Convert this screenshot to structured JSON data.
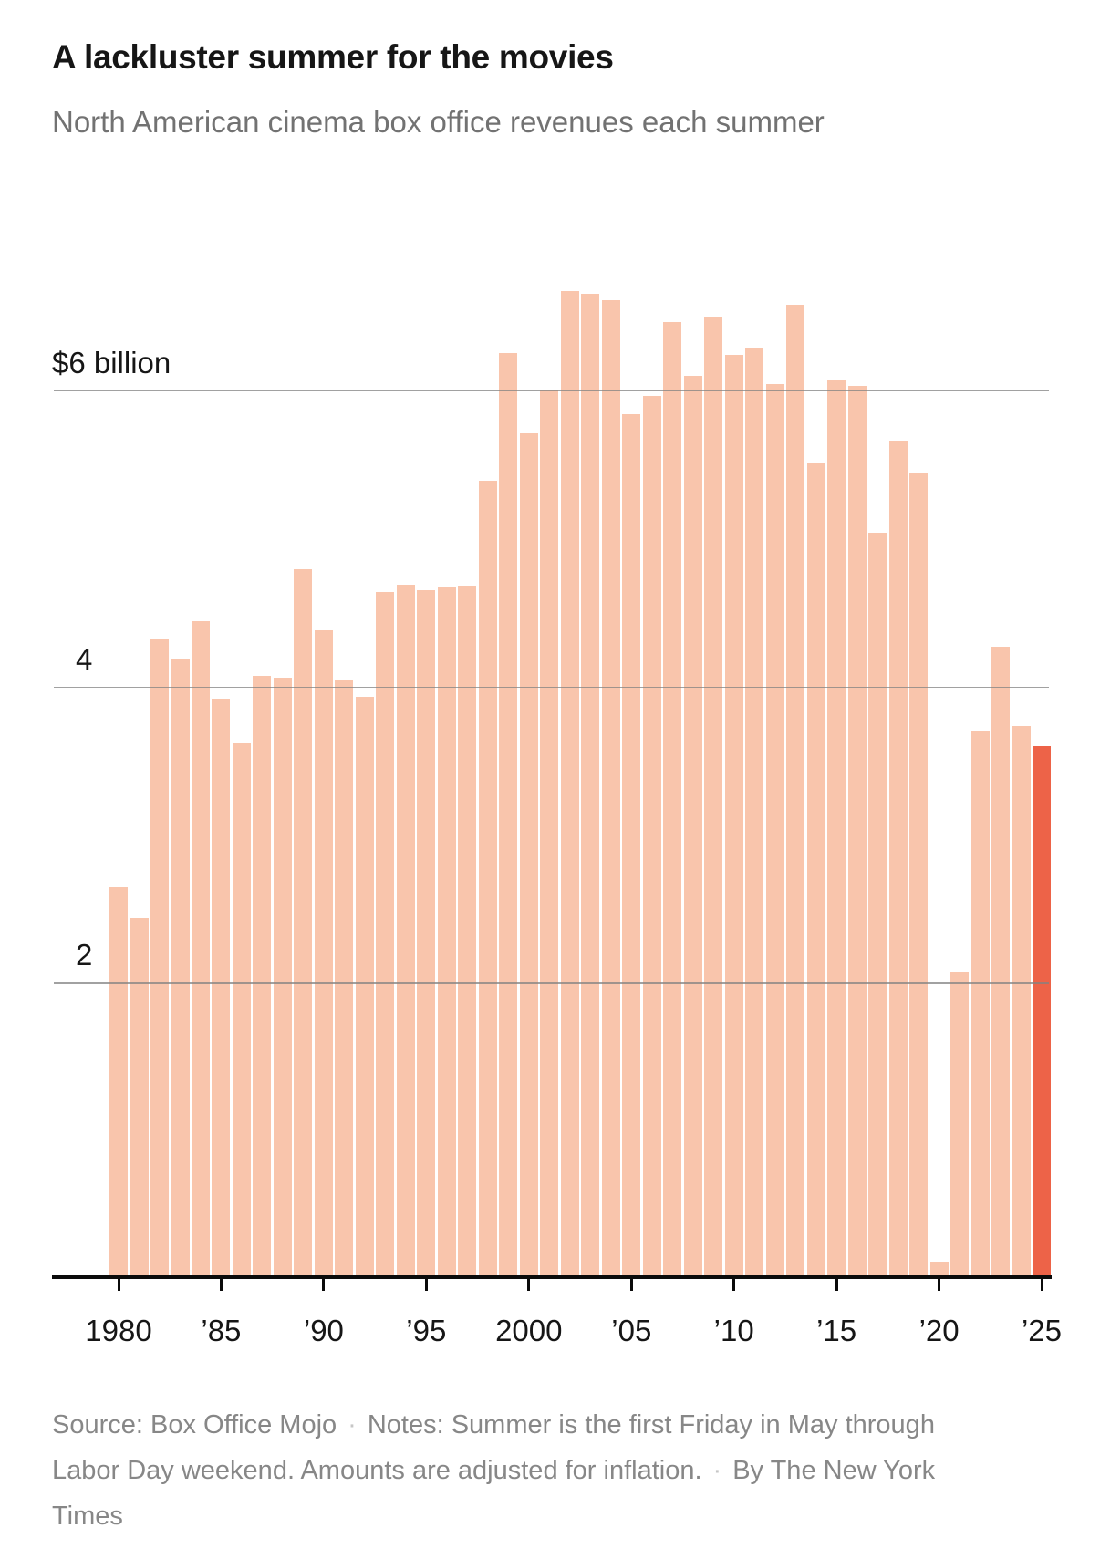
{
  "header": {
    "title": "A lackluster summer for the movies",
    "subtitle": "North American cinema box office revenues each summer"
  },
  "chart_data": {
    "type": "bar",
    "title": "A lackluster summer for the movies",
    "subtitle": "North American cinema box office revenues each summer",
    "unit": "billions of dollars",
    "years": [
      1980,
      1981,
      1982,
      1983,
      1984,
      1985,
      1986,
      1987,
      1988,
      1989,
      1990,
      1991,
      1992,
      1993,
      1994,
      1995,
      1996,
      1997,
      1998,
      1999,
      2000,
      2001,
      2002,
      2003,
      2004,
      2005,
      2006,
      2007,
      2008,
      2009,
      2010,
      2011,
      2012,
      2013,
      2014,
      2015,
      2016,
      2017,
      2018,
      2019,
      2020,
      2021,
      2022,
      2023,
      2024,
      2025
    ],
    "values": [
      2.65,
      2.44,
      4.32,
      4.19,
      4.44,
      3.92,
      3.62,
      4.07,
      4.06,
      4.79,
      4.38,
      4.05,
      3.93,
      4.64,
      4.69,
      4.65,
      4.67,
      4.68,
      5.39,
      6.25,
      5.71,
      6.0,
      6.67,
      6.65,
      6.61,
      5.84,
      5.96,
      6.46,
      6.1,
      6.49,
      6.24,
      6.29,
      6.04,
      6.58,
      5.51,
      6.07,
      6.03,
      5.04,
      5.66,
      5.44,
      0.12,
      2.07,
      3.7,
      4.27,
      3.73,
      3.6
    ],
    "highlight_year": 2025,
    "ylim": [
      0,
      7
    ],
    "grid": true,
    "y_axis": {
      "gridline_values": [
        2,
        4,
        6
      ],
      "ticks": [
        {
          "value": 6,
          "label": "$6 billion"
        },
        {
          "value": 4,
          "label": "4"
        },
        {
          "value": 2,
          "label": "2"
        }
      ]
    },
    "x_axis": {
      "ticks": [
        {
          "year": 1980,
          "label": "1980"
        },
        {
          "year": 1985,
          "label": "’85"
        },
        {
          "year": 1990,
          "label": "’90"
        },
        {
          "year": 1995,
          "label": "’95"
        },
        {
          "year": 2000,
          "label": "2000"
        },
        {
          "year": 2005,
          "label": "’05"
        },
        {
          "year": 2010,
          "label": "’10"
        },
        {
          "year": 2015,
          "label": "’15"
        },
        {
          "year": 2020,
          "label": "’20"
        },
        {
          "year": 2025,
          "label": "’25"
        }
      ]
    },
    "colors": {
      "bar": "#f9c5ac",
      "highlight_bar": "#ed6348",
      "gridline": "#8a8a8a",
      "axis": "#0b0b0b",
      "title_text": "#161616",
      "subtitle_text": "#727272",
      "footer_text": "#878787"
    },
    "legend": null
  },
  "footer": {
    "source": "Source: Box Office Mojo",
    "notes": "Notes: Summer is the first Friday in May through Labor Day weekend. Amounts are adjusted for inflation.",
    "byline": "By The New York Times",
    "separator": "·"
  }
}
